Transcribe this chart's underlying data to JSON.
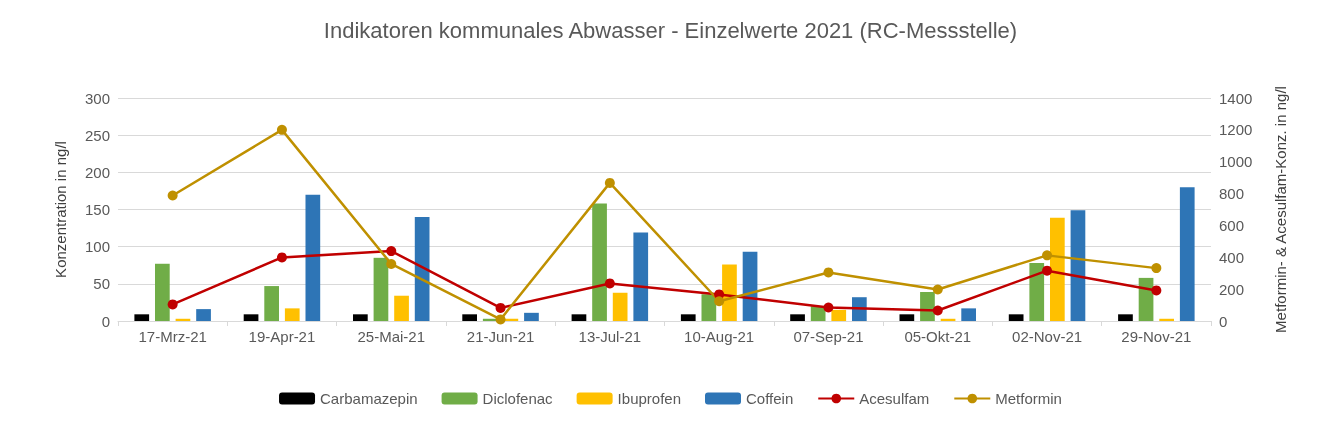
{
  "chart_data": {
    "type": "bar",
    "title": "Indikatoren kommunales Abwasser - Einzelwerte 2021 (RC-Messstelle)",
    "ylabel": "Konzentration in ng/l",
    "y2label": "Metformin- & Acesulfam-Konz. in ng/l",
    "categories": [
      "17-Mrz-21",
      "19-Apr-21",
      "25-Mai-21",
      "21-Jun-21",
      "13-Jul-21",
      "10-Aug-21",
      "07-Sep-21",
      "05-Okt-21",
      "02-Nov-21",
      "29-Nov-21"
    ],
    "series": [
      {
        "name": "Carbamazepin",
        "color": "#000000",
        "values": [
          9,
          9,
          9,
          9,
          9,
          9,
          9,
          9,
          9,
          9
        ]
      },
      {
        "name": "Diclofenac",
        "color": "#70ad47",
        "values": [
          77,
          47,
          85,
          3,
          158,
          36,
          20,
          39,
          78,
          58
        ]
      },
      {
        "name": "Ibuprofen",
        "color": "#ffc000",
        "values": [
          3,
          17,
          34,
          3,
          38,
          76,
          15,
          3,
          139,
          3
        ]
      },
      {
        "name": "Coffein",
        "color": "#2e75b6",
        "values": [
          16,
          170,
          140,
          11,
          119,
          93,
          32,
          17,
          149,
          180
        ]
      },
      {
        "name": "Acesulfam",
        "type": "line",
        "axis": "y2",
        "color": "#c00000",
        "values": [
          104,
          399,
          439,
          82,
          236,
          167,
          85,
          66,
          316,
          192
        ]
      },
      {
        "name": "Metformin",
        "type": "line",
        "axis": "y2",
        "color": "#bf9000",
        "values": [
          788,
          1200,
          358,
          10,
          867,
          124,
          305,
          198,
          412,
          332
        ]
      }
    ],
    "ylim": [
      0,
      300
    ],
    "yticks": [
      0,
      50,
      100,
      150,
      200,
      250,
      300
    ],
    "y2lim": [
      0,
      1400
    ],
    "y2ticks": [
      0,
      200,
      400,
      600,
      800,
      1000,
      1200,
      1400
    ],
    "grid": "y",
    "legend": "bottom",
    "marker": "circle",
    "line_style": "solid"
  }
}
